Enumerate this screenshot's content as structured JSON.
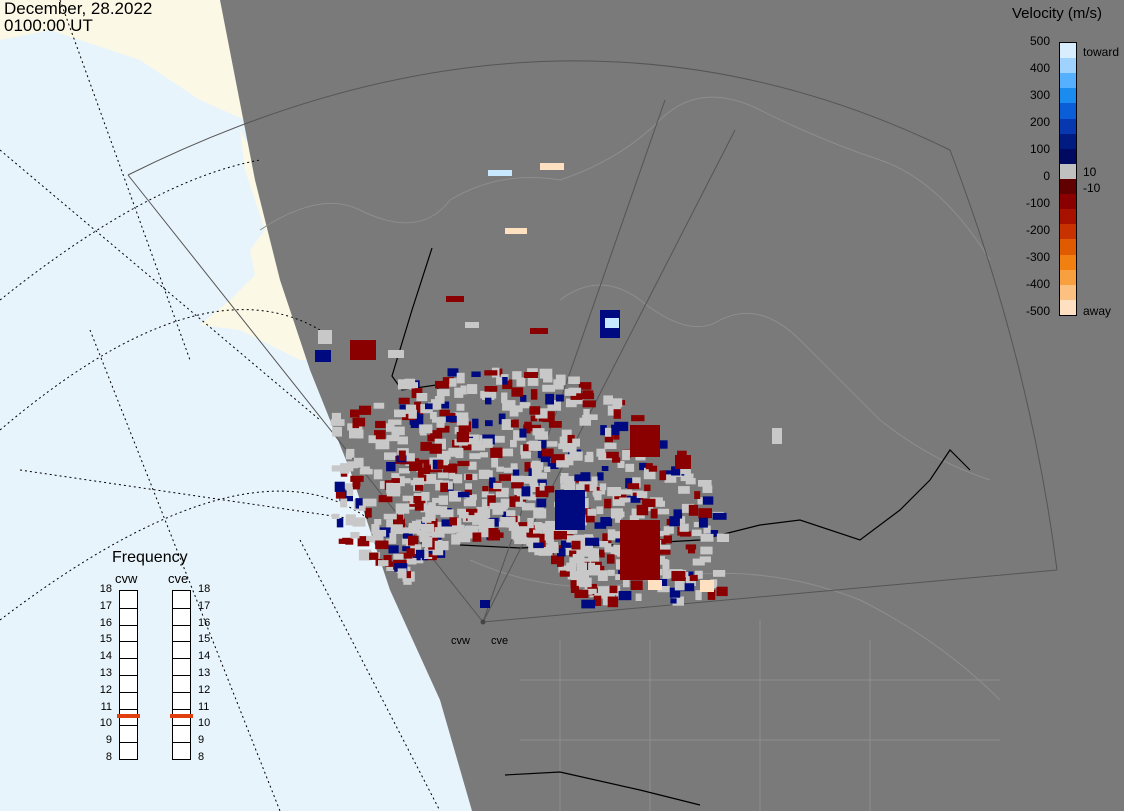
{
  "header": {
    "date": "December, 28.2022",
    "time": "0100:00 UT"
  },
  "legend": {
    "title": "Velocity (m/s)",
    "ticks": [
      "500",
      "400",
      "300",
      "200",
      "100",
      "0",
      "-100",
      "-200",
      "-300",
      "-400",
      "-500"
    ],
    "right_labels": {
      "toward": "toward",
      "pos10": "10",
      "neg10": "-10",
      "away": "away"
    },
    "colors": [
      "#d8eeff",
      "#9fd2ff",
      "#55b0ff",
      "#1a8cf0",
      "#0a5ed8",
      "#0838b0",
      "#001c80",
      "#000a60",
      "#c0c0c0",
      "#600000",
      "#8a0000",
      "#a81000",
      "#c83200",
      "#e05a00",
      "#f28010",
      "#f8a040",
      "#fcc080",
      "#ffe0c0"
    ]
  },
  "frequency": {
    "title": "Frequency",
    "radars": [
      "cvw",
      "cve"
    ],
    "scale": [
      "18",
      "17",
      "16",
      "15",
      "14",
      "13",
      "12",
      "11",
      "10",
      "9",
      "8"
    ],
    "marker_mhz": 10.5,
    "marker_color": "#e04010"
  },
  "radar_sites": {
    "west": "cvw",
    "east": "cve"
  }
}
